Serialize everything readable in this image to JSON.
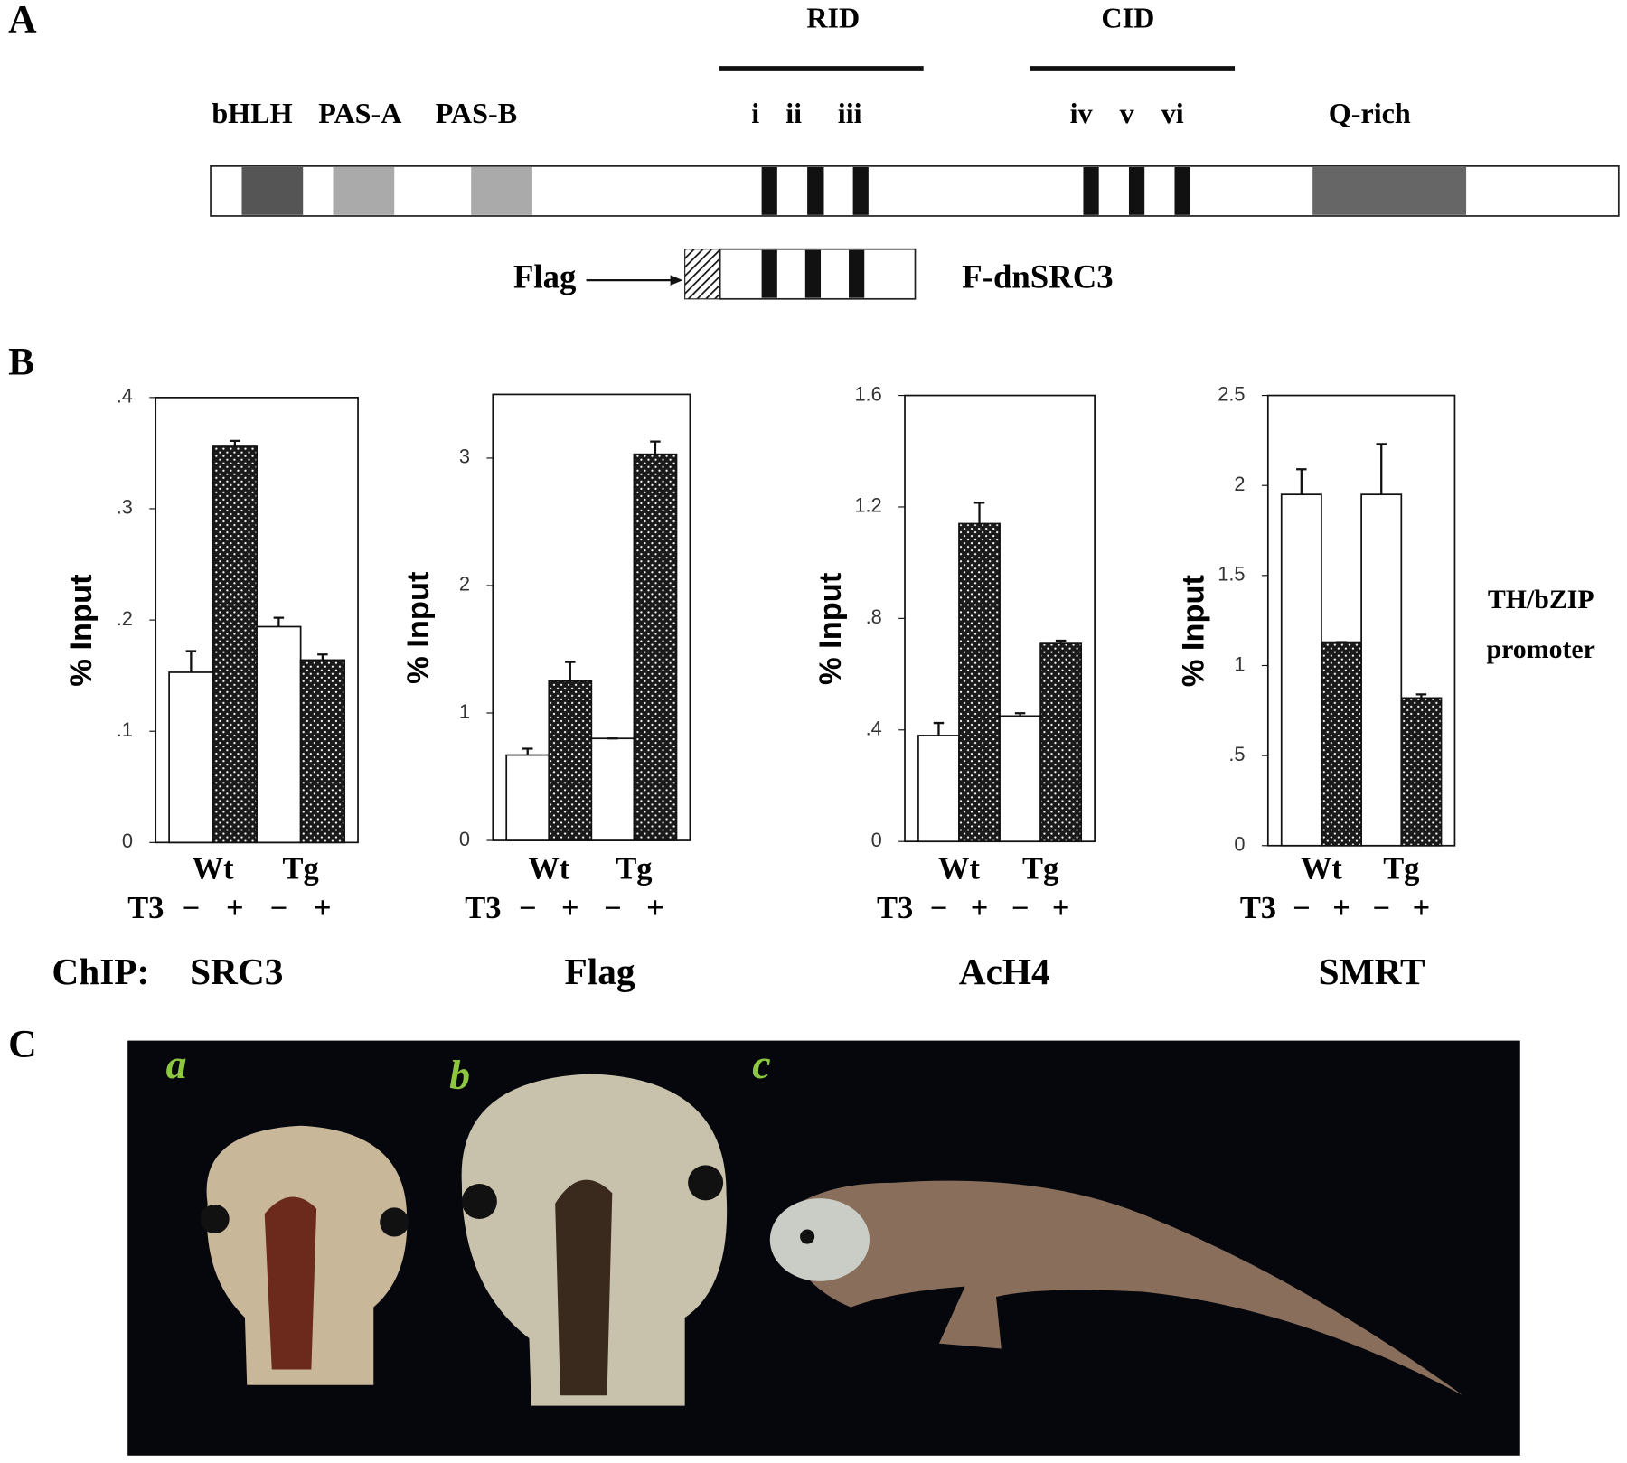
{
  "panel_labels": [
    "A",
    "B",
    "C"
  ],
  "domain_map": {
    "domains": [
      "bHLH",
      "PAS-A",
      "PAS-B",
      "Q-rich"
    ],
    "groups": [
      "RID",
      "CID"
    ],
    "motifs": [
      "i",
      "ii",
      "iii",
      "iv",
      "v",
      "vi"
    ],
    "tag_label": "Flag",
    "construct_label": "F-dnSRC3"
  },
  "chip_prefix": "ChIP:",
  "side_label": [
    "TH/bZIP",
    "promoter"
  ],
  "photo_labels": [
    "a",
    "b",
    "c"
  ],
  "chart_data": [
    {
      "type": "bar",
      "title": "SRC3",
      "y_label": "% Input",
      "categories": [
        "Wt",
        "Tg"
      ],
      "treatment_label": "T3",
      "ylim": [
        0,
        0.4
      ],
      "yticks": [
        0,
        {
          "value": 0.1,
          "label": ".1"
        },
        {
          "value": 0.2,
          "label": ".2"
        },
        {
          "value": 0.3,
          "label": ".3"
        },
        {
          "value": 0.4,
          "label": ".4"
        }
      ],
      "series": [
        {
          "name": "−",
          "color": "#ffffff",
          "values": [
            0.153,
            0.194
          ],
          "errors": [
            0.019,
            0.008
          ]
        },
        {
          "name": "+",
          "color": "#1a1a1a",
          "values": [
            0.356,
            0.164
          ],
          "errors": [
            0.005,
            0.005
          ]
        }
      ]
    },
    {
      "type": "bar",
      "title": "Flag",
      "y_label": "% Input",
      "categories": [
        "Wt",
        "Tg"
      ],
      "treatment_label": "T3",
      "ylim": [
        0,
        3.5
      ],
      "yticks": [
        0,
        1,
        2,
        3
      ],
      "series": [
        {
          "name": "−",
          "color": "#ffffff",
          "values": [
            0.67,
            0.8
          ],
          "errors": [
            0.05,
            0
          ]
        },
        {
          "name": "+",
          "color": "#1a1a1a",
          "values": [
            1.25,
            3.03
          ],
          "errors": [
            0.15,
            0.1
          ]
        }
      ]
    },
    {
      "type": "bar",
      "title": "AcH4",
      "y_label": "% Input",
      "categories": [
        "Wt",
        "Tg"
      ],
      "treatment_label": "T3",
      "ylim": [
        0,
        1.6
      ],
      "yticks": [
        0,
        {
          "value": 0.4,
          "label": ".4"
        },
        {
          "value": 0.8,
          "label": ".8"
        },
        1.2,
        1.6
      ],
      "series": [
        {
          "name": "−",
          "color": "#ffffff",
          "values": [
            0.38,
            0.45
          ],
          "errors": [
            0.045,
            0.01
          ]
        },
        {
          "name": "+",
          "color": "#1a1a1a",
          "values": [
            1.14,
            0.71
          ],
          "errors": [
            0.075,
            0.01
          ]
        }
      ]
    },
    {
      "type": "bar",
      "title": "SMRT",
      "y_label": "% Input",
      "categories": [
        "Wt",
        "Tg"
      ],
      "treatment_label": "T3",
      "ylim": [
        0,
        2.5
      ],
      "yticks": [
        0,
        {
          "value": 0.5,
          "label": ".5"
        },
        1,
        1.5,
        2,
        2.5
      ],
      "series": [
        {
          "name": "−",
          "color": "#ffffff",
          "values": [
            1.95,
            1.95
          ],
          "errors": [
            0.14,
            0.28
          ]
        },
        {
          "name": "+",
          "color": "#1a1a1a",
          "values": [
            1.13,
            0.82
          ],
          "errors": [
            0,
            0.02
          ]
        }
      ]
    }
  ]
}
